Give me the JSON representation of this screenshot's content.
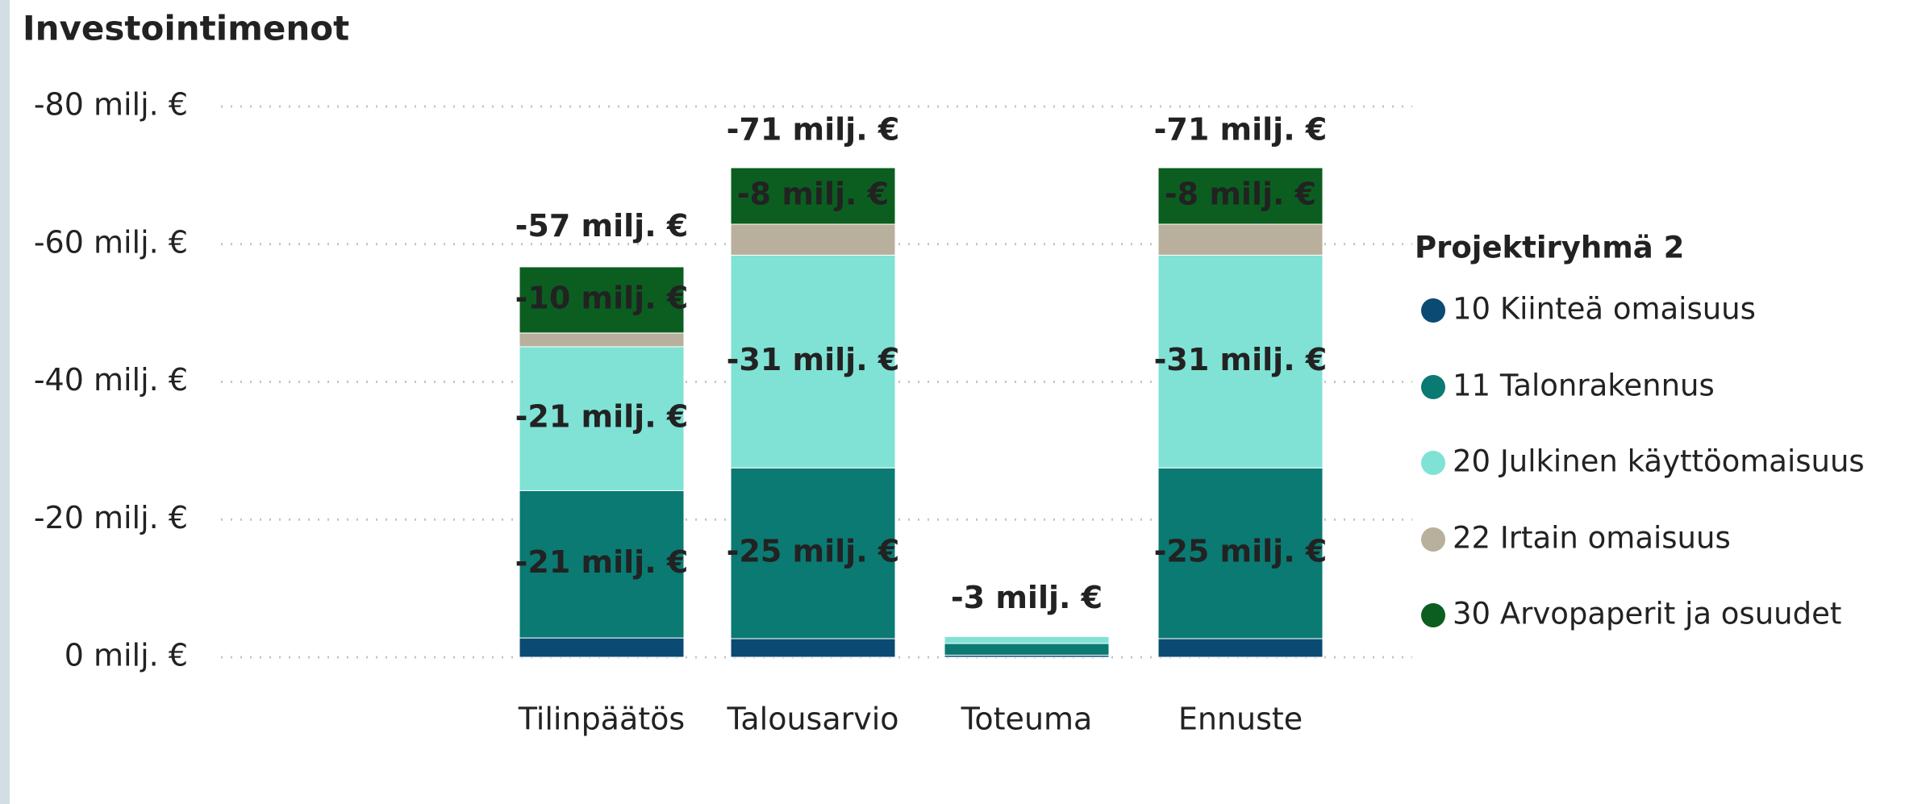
{
  "chart_data": {
    "type": "stacked_bar",
    "title": "Investointimenot",
    "categories": [
      "Tilinpäätös",
      "Talousarvio",
      "Toteuma",
      "Ennuste"
    ],
    "legend_title": "Projektiryhmä 2",
    "legend": "right",
    "grid": true,
    "ylim": [
      0,
      -80
    ],
    "yticks": [
      {
        "value": 0,
        "label": "0 milj. €"
      },
      {
        "value": -20,
        "label": "-20 milj. €"
      },
      {
        "value": -40,
        "label": "-40 milj. €"
      },
      {
        "value": -60,
        "label": "-60 milj. €"
      },
      {
        "value": -80,
        "label": "-80 milj. €"
      }
    ],
    "series": [
      {
        "name": "10 Kiinteä omaisuus",
        "color": "#0b4a73",
        "values": [
          -2.8,
          -2.7,
          -0.3,
          -2.7
        ],
        "value_labels": [
          null,
          null,
          null,
          null
        ]
      },
      {
        "name": "11 Talonrakennus",
        "color": "#0a7a73",
        "values": [
          -21.4,
          -24.8,
          -1.7,
          -24.8
        ],
        "value_labels": [
          "-21 milj. €",
          "-25 milj. €",
          null,
          "-25 milj. €"
        ]
      },
      {
        "name": "20 Julkinen käyttöomaisuus",
        "color": "#7fe2d5",
        "values": [
          -20.9,
          -30.9,
          -1.0,
          -30.9
        ],
        "value_labels": [
          "-21 milj. €",
          "-31 milj. €",
          null,
          "-31 milj. €"
        ]
      },
      {
        "name": "22 Irtain omaisuus",
        "color": "#b8b09c",
        "values": [
          -2.0,
          -4.5,
          0,
          -4.5
        ],
        "value_labels": [
          null,
          null,
          null,
          null
        ]
      },
      {
        "name": "30 Arvopaperit ja osuudet",
        "color": "#0b5e20",
        "values": [
          -9.6,
          -8.2,
          0,
          -8.2
        ],
        "value_labels": [
          "-10 milj. €",
          "-8 milj. €",
          null,
          "-8 milj. €"
        ]
      }
    ],
    "totals": [
      -57,
      -71,
      -3,
      -71
    ],
    "total_labels": [
      "-57 milj. €",
      "-71 milj. €",
      "-3 milj. €",
      "-71 milj. €"
    ]
  }
}
